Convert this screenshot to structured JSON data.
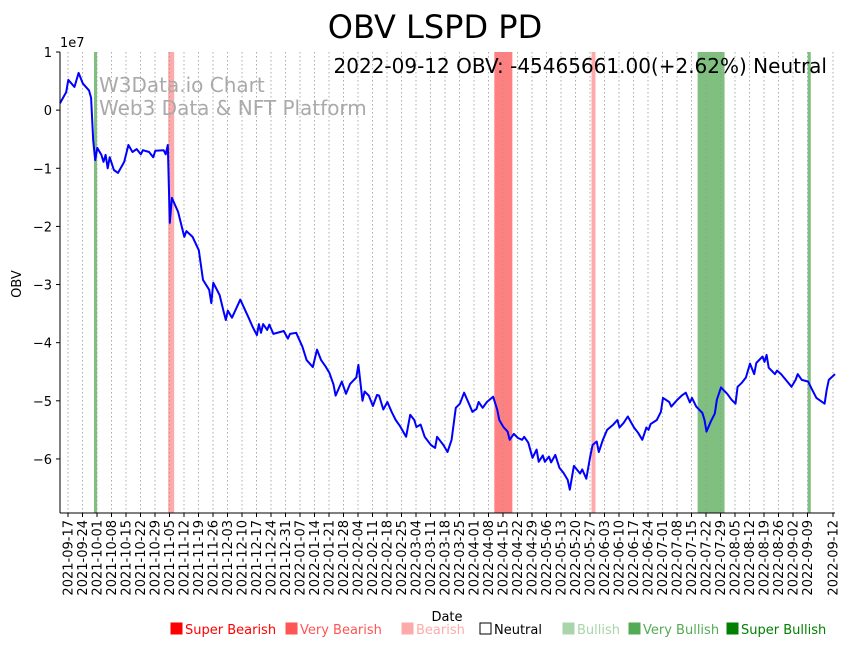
{
  "chart_data": {
    "type": "line",
    "title": "OBV LSPD PD",
    "annotation": "2022-09-12 OBV: -45465661.00(+2.62%) Neutral",
    "watermark": [
      "W3Data.io Chart",
      "Web3 Data & NFT Platform"
    ],
    "xlabel": "Date",
    "ylabel": "OBV",
    "y_multiplier_label": "1e7",
    "x_origin_date": "2021-09-13",
    "xlim_days": [
      0,
      374
    ],
    "ylim": [
      -6.93,
      1.0
    ],
    "yticks": [
      1,
      0,
      -1,
      -2,
      -3,
      -4,
      -5,
      -6
    ],
    "ytick_labels": [
      "1",
      "0",
      "−1",
      "−2",
      "−3",
      "−4",
      "−5",
      "−6"
    ],
    "xtick_labels": [
      "2021-09-17",
      "2021-09-24",
      "2021-10-01",
      "2021-10-08",
      "2021-10-15",
      "2021-10-22",
      "2021-10-29",
      "2021-11-05",
      "2021-11-12",
      "2021-11-19",
      "2021-11-26",
      "2021-12-03",
      "2021-12-10",
      "2021-12-17",
      "2021-12-24",
      "2021-12-31",
      "2022-01-07",
      "2022-01-14",
      "2022-01-21",
      "2022-01-28",
      "2022-02-04",
      "2022-02-11",
      "2022-02-18",
      "2022-02-25",
      "2022-03-04",
      "2022-03-11",
      "2022-03-18",
      "2022-03-25",
      "2022-04-01",
      "2022-04-08",
      "2022-04-15",
      "2022-04-22",
      "2022-04-29",
      "2022-05-06",
      "2022-05-13",
      "2022-05-20",
      "2022-05-27",
      "2022-06-03",
      "2022-06-10",
      "2022-06-17",
      "2022-06-24",
      "2022-07-01",
      "2022-07-08",
      "2022-07-15",
      "2022-07-22",
      "2022-07-29",
      "2022-08-05",
      "2022-08-12",
      "2022-08-19",
      "2022-08-26",
      "2022-09-02",
      "2022-09-09",
      "2022-09-12"
    ],
    "grid": "vertical-dotted",
    "series": [
      {
        "name": "OBV",
        "color": "#0000ff",
        "x_days": [
          0,
          3,
          4,
          7,
          9,
          11,
          14,
          15,
          16,
          17,
          18,
          20,
          21,
          22,
          23,
          24,
          26,
          28,
          31,
          33,
          35,
          37,
          39,
          40,
          43,
          45,
          46,
          50,
          51,
          52,
          53,
          54,
          57,
          60,
          61,
          64,
          67,
          69,
          72,
          73,
          74,
          77,
          79,
          80,
          81,
          83,
          87,
          91,
          93,
          95,
          96,
          97,
          98,
          100,
          101,
          103,
          108,
          110,
          111,
          114,
          117,
          119,
          122,
          124,
          126,
          128,
          130,
          132,
          133,
          136,
          138,
          140,
          143,
          144,
          146,
          147,
          149,
          151,
          153,
          154,
          156,
          158,
          160,
          162,
          164,
          167,
          169,
          171,
          172,
          174,
          176,
          179,
          181,
          182,
          185,
          187,
          189,
          191,
          193,
          195,
          197,
          199,
          201,
          202,
          204,
          206,
          209,
          211,
          212,
          214,
          216,
          217,
          219,
          221,
          223,
          224,
          226,
          228,
          230,
          231,
          233,
          234,
          236,
          237,
          239,
          241,
          243,
          245,
          246,
          248,
          251,
          252,
          254,
          256,
          257,
          259,
          260,
          262,
          264,
          267,
          269,
          270,
          272,
          274,
          277,
          279,
          281,
          283,
          284,
          285,
          288,
          290,
          291,
          294,
          295,
          298,
          300,
          302,
          304,
          305,
          307,
          310,
          311,
          312,
          314,
          316,
          317,
          319,
          322,
          324,
          326,
          327,
          329,
          331,
          333,
          335,
          336,
          339,
          340,
          341,
          342,
          345,
          346,
          348,
          351,
          353,
          355,
          356,
          358,
          361,
          363,
          365,
          369,
          370,
          371,
          374
        ],
        "values_1e7": [
          0.12,
          0.31,
          0.52,
          0.4,
          0.64,
          0.46,
          0.34,
          0.21,
          -0.52,
          -0.86,
          -0.65,
          -0.77,
          -0.89,
          -0.77,
          -1.0,
          -0.81,
          -1.03,
          -1.08,
          -0.89,
          -0.6,
          -0.72,
          -0.67,
          -0.76,
          -0.69,
          -0.72,
          -0.81,
          -0.7,
          -0.69,
          -0.76,
          -0.6,
          -1.94,
          -1.51,
          -1.75,
          -2.18,
          -2.08,
          -2.18,
          -2.41,
          -2.92,
          -3.09,
          -3.32,
          -2.97,
          -3.18,
          -3.47,
          -3.61,
          -3.45,
          -3.57,
          -3.26,
          -3.57,
          -3.73,
          -3.87,
          -3.68,
          -3.83,
          -3.68,
          -3.78,
          -3.69,
          -3.85,
          -3.8,
          -3.93,
          -3.85,
          -3.83,
          -4.07,
          -4.3,
          -4.42,
          -4.12,
          -4.3,
          -4.4,
          -4.52,
          -4.72,
          -4.91,
          -4.67,
          -4.88,
          -4.71,
          -4.6,
          -4.38,
          -5.0,
          -4.84,
          -4.91,
          -5.09,
          -4.9,
          -4.91,
          -5.15,
          -5.02,
          -5.19,
          -5.33,
          -5.43,
          -5.62,
          -5.24,
          -5.33,
          -5.45,
          -5.41,
          -5.62,
          -5.76,
          -5.81,
          -5.62,
          -5.76,
          -5.88,
          -5.67,
          -5.12,
          -5.05,
          -4.86,
          -5.02,
          -5.19,
          -5.14,
          -5.02,
          -5.12,
          -5.02,
          -4.93,
          -5.15,
          -5.33,
          -5.45,
          -5.53,
          -5.67,
          -5.57,
          -5.64,
          -5.67,
          -5.62,
          -5.72,
          -5.98,
          -5.84,
          -6.05,
          -5.94,
          -6.05,
          -5.96,
          -6.06,
          -5.93,
          -6.15,
          -6.24,
          -6.36,
          -6.53,
          -6.12,
          -6.25,
          -6.18,
          -6.34,
          -5.93,
          -5.76,
          -5.7,
          -5.88,
          -5.67,
          -5.5,
          -5.41,
          -5.33,
          -5.46,
          -5.38,
          -5.27,
          -5.46,
          -5.55,
          -5.67,
          -5.46,
          -5.5,
          -5.4,
          -5.33,
          -5.19,
          -4.95,
          -5.02,
          -5.1,
          -4.98,
          -4.91,
          -4.86,
          -5.03,
          -4.95,
          -5.1,
          -5.21,
          -5.33,
          -5.53,
          -5.36,
          -5.22,
          -4.98,
          -4.77,
          -4.88,
          -4.98,
          -5.05,
          -4.76,
          -4.69,
          -4.6,
          -4.36,
          -4.54,
          -4.35,
          -4.24,
          -4.33,
          -4.21,
          -4.43,
          -4.54,
          -4.48,
          -4.54,
          -4.67,
          -4.76,
          -4.64,
          -4.54,
          -4.64,
          -4.67,
          -4.81,
          -4.95,
          -5.05,
          -4.81,
          -4.64,
          -4.54
        ]
      }
    ],
    "bands": [
      {
        "class": "Super Bullish",
        "from_day": 16.4,
        "to_day": 17.9
      },
      {
        "class": "Very Bearish",
        "from_day": 52.2,
        "to_day": 55.1
      },
      {
        "class": "Super Bearish",
        "from_day": 209.6,
        "to_day": 218.3
      },
      {
        "class": "Very Bearish",
        "from_day": 256.5,
        "to_day": 258.4
      },
      {
        "class": "Super Bullish",
        "from_day": 307.7,
        "to_day": 320.7
      },
      {
        "class": "Super Bullish",
        "from_day": 360.8,
        "to_day": 362.3
      }
    ],
    "legend_position": "bottom-right",
    "legend": [
      {
        "label": "Super Bearish",
        "color": "#ff0000"
      },
      {
        "label": "Very Bearish",
        "color": "#ff5555"
      },
      {
        "label": "Bearish",
        "color": "#ffaaaa"
      },
      {
        "label": "Neutral",
        "color": "#ffffff"
      },
      {
        "label": "Bullish",
        "color": "#aad4aa"
      },
      {
        "label": "Very Bullish",
        "color": "#55aa55"
      },
      {
        "label": "Super Bullish",
        "color": "#008000"
      }
    ]
  }
}
